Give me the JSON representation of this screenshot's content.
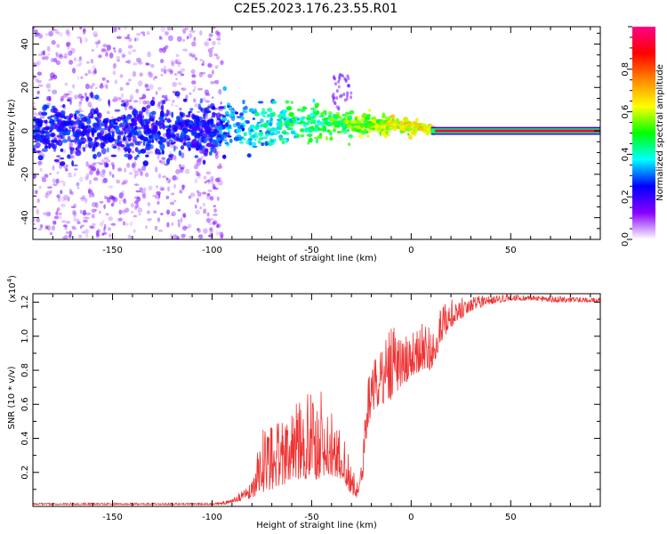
{
  "title": "C2E5.2023.176.23.55.R01",
  "chart_data": [
    {
      "type": "heatmap",
      "name": "spectrogram",
      "xlabel": "Height of straight line (km)",
      "ylabel": "Frequency (Hz)",
      "xlim": [
        -190,
        95
      ],
      "ylim": [
        -50,
        48
      ],
      "xticks": [
        -150,
        -100,
        -50,
        0,
        50
      ],
      "yticks": [
        -40,
        -20,
        0,
        20,
        40
      ],
      "colorbar": {
        "label": "Normalized spectral amplitude",
        "range": [
          0,
          1
        ],
        "ticks": [
          0.0,
          0.2,
          0.4,
          0.6,
          0.8
        ],
        "stops": [
          "#ffffff",
          "#8800ff",
          "#0000ff",
          "#00ffff",
          "#00ff00",
          "#ffff00",
          "#ff8800",
          "#ff0000",
          "#ff0088"
        ]
      },
      "regions": [
        {
          "x": [
            -190,
            -97
          ],
          "f_range": [
            -50,
            48
          ],
          "amp": [
            0.05,
            0.25
          ],
          "note": "scattered weak noise"
        },
        {
          "x": [
            -190,
            -97
          ],
          "f_range": [
            -12,
            12
          ],
          "amp": [
            0.2,
            0.3
          ],
          "note": "dense core band"
        },
        {
          "x": [
            -97,
            12
          ],
          "center_freq": 0,
          "amp": [
            0.3,
            0.75
          ],
          "note": "narrowing band, rising amplitude"
        },
        {
          "x": [
            12,
            95
          ],
          "center_freq": 0,
          "amp": [
            0.85,
            1.0
          ],
          "note": "steady narrow line"
        }
      ]
    },
    {
      "type": "line",
      "name": "snr",
      "xlabel": "Height of straight line (km)",
      "ylabel": "SNR (10 * v/v)",
      "yscale_label": "(x10",
      "yscale_exp": "4",
      "yscale_close": ")",
      "xlim": [
        -190,
        95
      ],
      "ylim": [
        0,
        1.25
      ],
      "xticks": [
        -150,
        -100,
        -50,
        0,
        50
      ],
      "yticks": [
        0.2,
        0.4,
        0.6,
        0.8,
        1.0,
        1.2
      ],
      "ytick_labels": [
        "0.2",
        "0.4",
        "0.6",
        "0.8",
        "1.0",
        "1.2"
      ],
      "color": "#ee3333",
      "envelope": {
        "x": [
          -190,
          -100,
          -95,
          -90,
          -80,
          -75,
          -70,
          -65,
          -60,
          -50,
          -45,
          -40,
          -35,
          -30,
          -27,
          -25,
          -22,
          -20,
          -15,
          -10,
          -5,
          0,
          5,
          10,
          15,
          20,
          25,
          30,
          35,
          40,
          45,
          50,
          60,
          70,
          80,
          95
        ],
        "base": [
          0.01,
          0.01,
          0.01,
          0.02,
          0.05,
          0.08,
          0.1,
          0.12,
          0.14,
          0.16,
          0.16,
          0.18,
          0.15,
          0.07,
          0.05,
          0.08,
          0.45,
          0.55,
          0.6,
          0.62,
          0.7,
          0.75,
          0.8,
          0.8,
          0.95,
          1.05,
          1.1,
          1.15,
          1.17,
          1.19,
          1.2,
          1.21,
          1.21,
          1.2,
          1.2,
          1.2
        ],
        "peak": [
          0.02,
          0.02,
          0.03,
          0.05,
          0.15,
          0.45,
          0.5,
          0.55,
          0.6,
          0.68,
          0.72,
          0.55,
          0.45,
          0.25,
          0.18,
          0.25,
          0.72,
          0.85,
          0.95,
          1.08,
          1.0,
          1.03,
          1.1,
          1.05,
          1.17,
          1.22,
          1.23,
          1.23,
          1.24,
          1.24,
          1.25,
          1.25,
          1.24,
          1.24,
          1.23,
          1.23
        ]
      }
    }
  ]
}
